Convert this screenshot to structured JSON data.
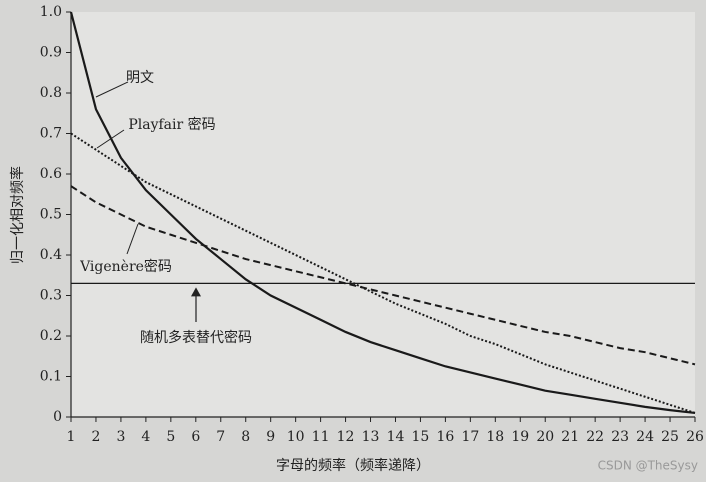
{
  "chart_data": {
    "type": "line",
    "x_label": "字母的频率（频率递降）",
    "y_label": "归一化相对频率",
    "watermark": "CSDN @TheSysy",
    "x": [
      1,
      2,
      3,
      4,
      5,
      6,
      7,
      8,
      9,
      10,
      11,
      12,
      13,
      14,
      15,
      16,
      17,
      18,
      19,
      20,
      21,
      22,
      23,
      24,
      25,
      26
    ],
    "xlim": [
      1,
      26
    ],
    "xticks": [
      1,
      2,
      3,
      4,
      5,
      6,
      7,
      8,
      9,
      10,
      11,
      12,
      13,
      14,
      15,
      16,
      17,
      18,
      19,
      20,
      21,
      22,
      23,
      24,
      25,
      26
    ],
    "ylim": [
      0,
      1
    ],
    "yticks": [
      0,
      0.1,
      0.2,
      0.3,
      0.4,
      0.5,
      0.6,
      0.7,
      0.8,
      0.9,
      {
        "value": 1,
        "label": "1.0"
      }
    ],
    "series": [
      {
        "name": "明文",
        "color": "#1a1a1a",
        "style": "solid",
        "values": [
          1.0,
          0.76,
          0.64,
          0.56,
          0.5,
          0.44,
          0.39,
          0.34,
          0.3,
          0.27,
          0.24,
          0.21,
          0.185,
          0.165,
          0.145,
          0.125,
          0.11,
          0.095,
          0.08,
          0.065,
          0.055,
          0.045,
          0.035,
          0.025,
          0.017,
          0.01
        ]
      },
      {
        "name": "Playfair 密码",
        "color": "#1a1a1a",
        "style": "dotted",
        "values": [
          0.7,
          0.66,
          0.62,
          0.58,
          0.55,
          0.52,
          0.49,
          0.46,
          0.43,
          0.4,
          0.37,
          0.34,
          0.31,
          0.28,
          0.255,
          0.23,
          0.2,
          0.18,
          0.155,
          0.13,
          0.11,
          0.09,
          0.07,
          0.05,
          0.03,
          0.01
        ]
      },
      {
        "name": "Vigenère密码",
        "color": "#1a1a1a",
        "style": "dashed",
        "values": [
          0.57,
          0.53,
          0.5,
          0.47,
          0.45,
          0.43,
          0.41,
          0.39,
          0.375,
          0.36,
          0.345,
          0.33,
          0.315,
          0.3,
          0.285,
          0.27,
          0.255,
          0.24,
          0.225,
          0.21,
          0.2,
          0.185,
          0.17,
          0.16,
          0.145,
          0.13
        ]
      }
    ],
    "reference_line": {
      "name": "随机多表替代密码",
      "value": 0.33,
      "color": "#1a1a1a"
    }
  }
}
